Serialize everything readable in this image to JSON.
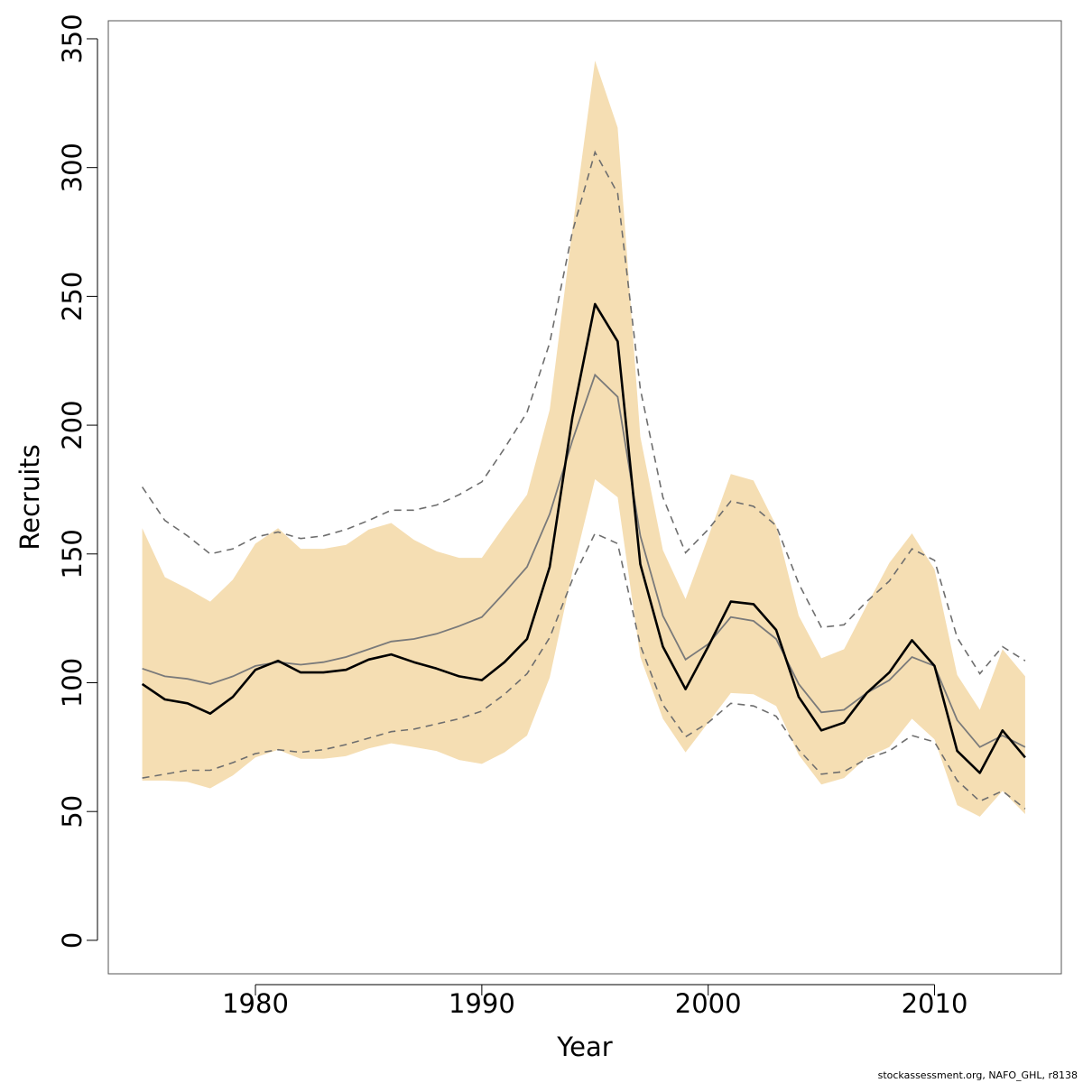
{
  "chart_data": {
    "type": "line",
    "xlabel": "Year",
    "ylabel": "Recruits",
    "xlim": [
      1973.5,
      2015.6
    ],
    "ylim": [
      -13,
      357
    ],
    "x_ticks": [
      1980,
      1990,
      2000,
      2010
    ],
    "y_ticks": [
      0,
      50,
      100,
      150,
      200,
      250,
      300,
      350
    ],
    "grid": false,
    "colors": {
      "band": "#f5deb3",
      "estimate": "#000000",
      "median": "#7a7a7a",
      "dashed": "#6e6e6e"
    },
    "x": [
      1975,
      1976,
      1977,
      1978,
      1979,
      1980,
      1981,
      1982,
      1983,
      1984,
      1985,
      1986,
      1987,
      1988,
      1989,
      1990,
      1991,
      1992,
      1993,
      1994,
      1995,
      1996,
      1997,
      1998,
      1999,
      2000,
      2001,
      2002,
      2003,
      2004,
      2005,
      2006,
      2007,
      2008,
      2009,
      2010,
      2011,
      2012,
      2013,
      2014
    ],
    "series": [
      {
        "style": "band",
        "lower": [
          62,
          62,
          61.5,
          59,
          64,
          71,
          74,
          70.5,
          70.5,
          71.5,
          74.5,
          76.5,
          75,
          73.5,
          70,
          68.5,
          73,
          79.5,
          102,
          143,
          179,
          172,
          110,
          86,
          73,
          84.5,
          96,
          95.5,
          91,
          72,
          60.5,
          63,
          71,
          75,
          86,
          78,
          52.5,
          48,
          58,
          49
        ],
        "upper": [
          160,
          141,
          136.5,
          131.5,
          140,
          154,
          160,
          152,
          152,
          153.5,
          159.5,
          162,
          155.5,
          151,
          148.5,
          148.5,
          161,
          173,
          206,
          276,
          341.5,
          315.5,
          195.5,
          151.5,
          132.5,
          156.5,
          181,
          178.5,
          161,
          126,
          109.5,
          113,
          130,
          146.5,
          158,
          144,
          103,
          89.5,
          113,
          102.5
        ]
      },
      {
        "style": "solid-thick",
        "values": [
          99.5,
          93.5,
          92,
          88,
          94.5,
          105,
          108.5,
          104,
          104,
          105,
          109,
          111,
          108,
          105.5,
          102.5,
          101,
          108,
          117,
          145,
          203,
          247,
          232.5,
          146,
          114,
          97.5,
          114,
          131.5,
          130.5,
          120.5,
          94.5,
          81.5,
          84.5,
          96,
          104,
          116.5,
          106.5,
          73.5,
          65,
          81.5,
          71
        ]
      },
      {
        "style": "solid-thin",
        "values": [
          105.5,
          102.5,
          101.5,
          99.5,
          102.5,
          106.5,
          108,
          107,
          108,
          110,
          113,
          116,
          117,
          119,
          122,
          125.5,
          135,
          145,
          165.5,
          194,
          219.5,
          211,
          157,
          126,
          109,
          115,
          125.5,
          124,
          117,
          99.5,
          88.5,
          89.5,
          96,
          101,
          110,
          106.5,
          85.5,
          75,
          79.5,
          75
        ]
      },
      {
        "style": "dashed-upper",
        "values": [
          176,
          163,
          157,
          150,
          152,
          156.5,
          158.5,
          156,
          157,
          159.5,
          163,
          167,
          167,
          169,
          173,
          178,
          191,
          205,
          232,
          275,
          306,
          290,
          214,
          172,
          150.5,
          159.5,
          170.5,
          168.5,
          161,
          138.5,
          121.5,
          122.5,
          131.5,
          139.5,
          152,
          147.5,
          117.5,
          103.5,
          114,
          108.5
        ]
      },
      {
        "style": "dashed-lower",
        "values": [
          63,
          64.5,
          66,
          66,
          69,
          72.5,
          74,
          73,
          74,
          76,
          78.5,
          81,
          82,
          84,
          86,
          89,
          95.5,
          103.5,
          117.5,
          140,
          158,
          154,
          114.5,
          91.5,
          79,
          84.5,
          92,
          91,
          87,
          74,
          64.5,
          65.5,
          70.5,
          73.5,
          79.5,
          77,
          62,
          54,
          58,
          51
        ]
      }
    ]
  },
  "footer_text": "stockassessment.org, NAFO_GHL, r8138"
}
